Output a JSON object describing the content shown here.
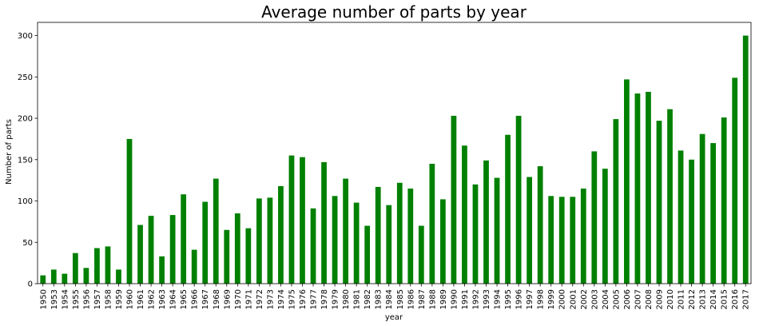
{
  "chart_data": {
    "type": "bar",
    "title": "Average number of parts by year",
    "xlabel": "year",
    "ylabel": "Number of parts",
    "ylim": [
      0,
      316
    ],
    "yticks": [
      0,
      50,
      100,
      150,
      200,
      250,
      300
    ],
    "grid": false,
    "bar_color": "#008000",
    "categories": [
      "1950",
      "1953",
      "1954",
      "1955",
      "1956",
      "1957",
      "1958",
      "1959",
      "1960",
      "1961",
      "1962",
      "1963",
      "1964",
      "1965",
      "1966",
      "1967",
      "1968",
      "1969",
      "1970",
      "1971",
      "1972",
      "1973",
      "1974",
      "1975",
      "1976",
      "1977",
      "1978",
      "1979",
      "1980",
      "1981",
      "1982",
      "1983",
      "1984",
      "1985",
      "1986",
      "1987",
      "1988",
      "1989",
      "1990",
      "1991",
      "1992",
      "1993",
      "1994",
      "1995",
      "1996",
      "1997",
      "1998",
      "1999",
      "2000",
      "2001",
      "2002",
      "2003",
      "2004",
      "2005",
      "2006",
      "2007",
      "2008",
      "2009",
      "2010",
      "2011",
      "2012",
      "2013",
      "2014",
      "2015",
      "2016",
      "2017"
    ],
    "values": [
      10,
      17,
      12,
      37,
      19,
      43,
      45,
      17,
      175,
      71,
      82,
      33,
      83,
      108,
      41,
      99,
      127,
      65,
      85,
      67,
      103,
      104,
      118,
      155,
      153,
      91,
      147,
      106,
      127,
      98,
      70,
      117,
      95,
      122,
      115,
      70,
      145,
      102,
      203,
      167,
      120,
      149,
      128,
      180,
      203,
      129,
      142,
      106,
      105,
      105,
      115,
      160,
      139,
      199,
      247,
      230,
      232,
      197,
      211,
      161,
      150,
      181,
      170,
      201,
      249,
      300
    ]
  }
}
